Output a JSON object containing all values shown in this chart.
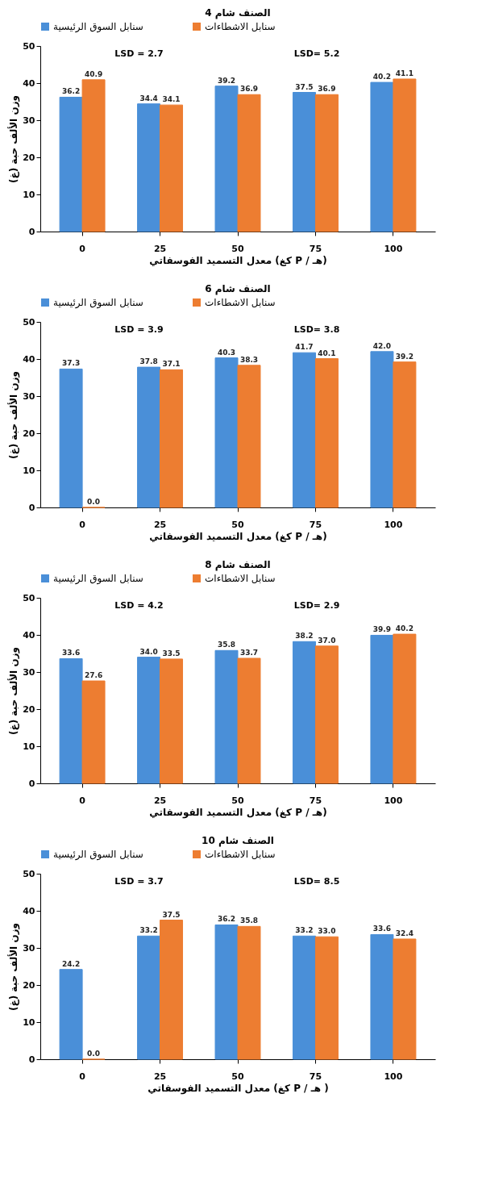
{
  "chart_data": [
    {
      "type": "bar",
      "title": "الصنف شام 4",
      "xlabel": "معدل التسميد الفوسفاتي (كغ P / هـ)",
      "ylabel": "وزن الألف حبة (غ)",
      "categories": [
        "0",
        "25",
        "50",
        "75",
        "100"
      ],
      "series": [
        {
          "name": "سنابل السوق الرئيسية",
          "color": "#4a8fd8",
          "values": [
            36.2,
            34.4,
            39.2,
            37.5,
            40.2
          ]
        },
        {
          "name": "سنابل الاشطاءات",
          "color": "#ed7d31",
          "values": [
            40.9,
            34.1,
            36.9,
            36.9,
            41.1
          ]
        }
      ],
      "ylim": [
        0,
        50
      ],
      "yticks": [
        0,
        10,
        20,
        30,
        40,
        50
      ],
      "grid": false,
      "legend": "top",
      "data_labels": true,
      "annotations": [
        "LSD = 2.7",
        "LSD= 5.2"
      ]
    },
    {
      "type": "bar",
      "title": "الصنف شام 6",
      "xlabel": "معدل التسميد الفوسفاتي (كغ P / هـ)",
      "ylabel": "وزن الألف حبة (غ)",
      "categories": [
        "0",
        "25",
        "50",
        "75",
        "100"
      ],
      "series": [
        {
          "name": "سنابل السوق الرئيسية",
          "color": "#4a8fd8",
          "values": [
            37.3,
            37.8,
            40.3,
            41.7,
            42.0
          ],
          "value_labels": [
            "37.3",
            "37.8",
            "40.3",
            "41.7",
            "42.0"
          ]
        },
        {
          "name": "سنابل الاشطاءات",
          "color": "#ed7d31",
          "values": [
            0.0,
            37.1,
            38.3,
            40.1,
            39.2
          ],
          "value_labels": [
            "0.0",
            "37.1",
            "38.3",
            "40.1",
            "39.2"
          ]
        }
      ],
      "ylim": [
        0,
        50
      ],
      "yticks": [
        0,
        10,
        20,
        30,
        40,
        50
      ],
      "grid": false,
      "legend": "top",
      "annotations": [
        "LSD = 3.9",
        "LSD= 3.8"
      ]
    },
    {
      "type": "bar",
      "title": "الصنف شام 8",
      "xlabel": "معدل التسميد الفوسفاتي (كغ P / هـ)",
      "ylabel": "وزن الألف حبة (غ)",
      "categories": [
        "0",
        "25",
        "50",
        "75",
        "100"
      ],
      "series": [
        {
          "name": "سنابل السوق الرئيسية",
          "color": "#4a8fd8",
          "values": [
            33.6,
            34.0,
            35.8,
            38.2,
            39.9
          ],
          "value_labels": [
            "33.6",
            "34.0",
            "35.8",
            "38.2",
            "39.9"
          ]
        },
        {
          "name": "سنابل الاشطاءات",
          "color": "#ed7d31",
          "values": [
            27.6,
            33.5,
            33.7,
            37.0,
            40.2
          ],
          "value_labels": [
            "27.6",
            "33.5",
            "33.7",
            "37.0",
            "40.2"
          ]
        }
      ],
      "ylim": [
        0,
        50
      ],
      "yticks": [
        0,
        10,
        20,
        30,
        40,
        50
      ],
      "grid": false,
      "legend": "top",
      "annotations": [
        "LSD = 4.2",
        "LSD= 2.9"
      ]
    },
    {
      "type": "bar",
      "title": "الصنف شام 10",
      "xlabel": "معدل التسميد الفوسفاتي (كغ P / هـ )",
      "ylabel": "وزن الألف حبة (غ)",
      "categories": [
        "0",
        "25",
        "50",
        "75",
        "100"
      ],
      "series": [
        {
          "name": "سنابل السوق الرئيسية",
          "color": "#4a8fd8",
          "values": [
            24.2,
            33.2,
            36.2,
            33.2,
            33.6
          ],
          "value_labels": [
            "24.2",
            "33.2",
            "36.2",
            "33.2",
            "33.6"
          ]
        },
        {
          "name": "سنابل الاشطاءات",
          "color": "#ed7d31",
          "values": [
            0.0,
            37.5,
            35.8,
            33.0,
            32.4
          ],
          "value_labels": [
            "0.0",
            "37.5",
            "35.8",
            "33.0",
            "32.4"
          ]
        }
      ],
      "ylim": [
        0,
        50
      ],
      "yticks": [
        0,
        10,
        20,
        30,
        40,
        50
      ],
      "grid": false,
      "legend": "top",
      "annotations": [
        "LSD = 3.7",
        "LSD= 8.5"
      ]
    }
  ]
}
